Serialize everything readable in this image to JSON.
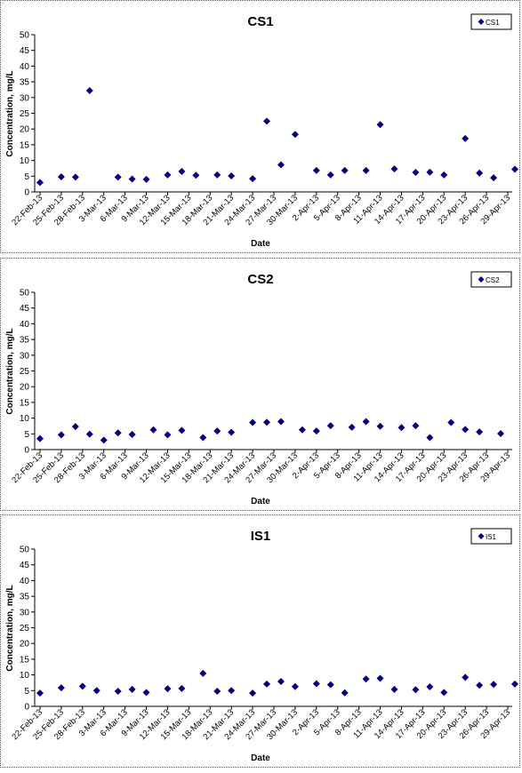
{
  "chart_data": [
    {
      "type": "scatter",
      "title": "CS1",
      "xlabel": "Date",
      "ylabel": "Concentration, mg/L",
      "ylim": [
        0,
        50
      ],
      "yticks": [
        0,
        5,
        10,
        15,
        20,
        25,
        30,
        35,
        40,
        45,
        50
      ],
      "xticks": [
        "22-Feb-13",
        "25-Feb-13",
        "28-Feb-13",
        "3-Mar-13",
        "6-Mar-13",
        "9-Mar-13",
        "12-Mar-13",
        "15-Mar-13",
        "18-Mar-13",
        "21-Mar-13",
        "24-Mar-13",
        "27-Mar-13",
        "30-Mar-13",
        "2-Apr-13",
        "5-Apr-13",
        "8-Apr-13",
        "11-Apr-13",
        "14-Apr-13",
        "17-Apr-13",
        "20-Apr-13",
        "23-Apr-13",
        "26-Apr-13",
        "29-Apr-13"
      ],
      "legend": "top-right",
      "grid": false,
      "color": "#000080",
      "series": [
        {
          "name": "CS1",
          "points": [
            [
              "22-Feb-13",
              3
            ],
            [
              "25-Feb-13",
              4.8
            ],
            [
              "27-Feb-13",
              4.7
            ],
            [
              "1-Mar-13",
              32.2
            ],
            [
              "5-Mar-13",
              4.7
            ],
            [
              "7-Mar-13",
              4.1
            ],
            [
              "9-Mar-13",
              4
            ],
            [
              "12-Mar-13",
              5.4
            ],
            [
              "14-Mar-13",
              6.5
            ],
            [
              "16-Mar-13",
              5.3
            ],
            [
              "19-Mar-13",
              5.4
            ],
            [
              "21-Mar-13",
              5.1
            ],
            [
              "24-Mar-13",
              4.2
            ],
            [
              "26-Mar-13",
              22.5
            ],
            [
              "28-Mar-13",
              8.6
            ],
            [
              "30-Mar-13",
              18.3
            ],
            [
              "2-Apr-13",
              6.8
            ],
            [
              "4-Apr-13",
              5.4
            ],
            [
              "6-Apr-13",
              6.8
            ],
            [
              "9-Apr-13",
              6.8
            ],
            [
              "11-Apr-13",
              21.4
            ],
            [
              "13-Apr-13",
              7.3
            ],
            [
              "16-Apr-13",
              6.2
            ],
            [
              "18-Apr-13",
              6.3
            ],
            [
              "20-Apr-13",
              5.4
            ],
            [
              "23-Apr-13",
              17
            ],
            [
              "25-Apr-13",
              6
            ],
            [
              "27-Apr-13",
              4.5
            ],
            [
              "30-Apr-13",
              7.2
            ]
          ]
        }
      ]
    },
    {
      "type": "scatter",
      "title": "CS2",
      "xlabel": "Date",
      "ylabel": "Concentration, mg/L",
      "ylim": [
        0,
        50
      ],
      "yticks": [
        0,
        5,
        10,
        15,
        20,
        25,
        30,
        35,
        40,
        45,
        50
      ],
      "xticks": [
        "22-Feb-13",
        "25-Feb-13",
        "28-Feb-13",
        "3-Mar-13",
        "6-Mar-13",
        "9-Mar-13",
        "12-Mar-13",
        "15-Mar-13",
        "18-Mar-13",
        "21-Mar-13",
        "24-Mar-13",
        "27-Mar-13",
        "30-Mar-13",
        "2-Apr-13",
        "5-Apr-13",
        "8-Apr-13",
        "11-Apr-13",
        "14-Apr-13",
        "17-Apr-13",
        "20-Apr-13",
        "23-Apr-13",
        "26-Apr-13",
        "29-Apr-13"
      ],
      "legend": "top-right",
      "grid": false,
      "color": "#000080",
      "series": [
        {
          "name": "CS2",
          "points": [
            [
              "22-Feb-13",
              3.5
            ],
            [
              "25-Feb-13",
              4.7
            ],
            [
              "27-Feb-13",
              7.3
            ],
            [
              "1-Mar-13",
              4.9
            ],
            [
              "3-Mar-13",
              3
            ],
            [
              "5-Mar-13",
              5.3
            ],
            [
              "7-Mar-13",
              4.8
            ],
            [
              "10-Mar-13",
              6.3
            ],
            [
              "12-Mar-13",
              4.7
            ],
            [
              "14-Mar-13",
              6.1
            ],
            [
              "17-Mar-13",
              3.8
            ],
            [
              "19-Mar-13",
              5.9
            ],
            [
              "21-Mar-13",
              5.5
            ],
            [
              "24-Mar-13",
              8.6
            ],
            [
              "26-Mar-13",
              8.7
            ],
            [
              "28-Mar-13",
              8.9
            ],
            [
              "31-Mar-13",
              6.3
            ],
            [
              "2-Apr-13",
              5.9
            ],
            [
              "4-Apr-13",
              7.6
            ],
            [
              "7-Apr-13",
              7.1
            ],
            [
              "9-Apr-13",
              8.9
            ],
            [
              "11-Apr-13",
              7.4
            ],
            [
              "14-Apr-13",
              7
            ],
            [
              "16-Apr-13",
              7.6
            ],
            [
              "18-Apr-13",
              3.8
            ],
            [
              "21-Apr-13",
              8.6
            ],
            [
              "23-Apr-13",
              6.4
            ],
            [
              "25-Apr-13",
              5.6
            ],
            [
              "28-Apr-13",
              5.1
            ]
          ]
        }
      ]
    },
    {
      "type": "scatter",
      "title": "IS1",
      "xlabel": "Date",
      "ylabel": "Concentration, mg/L",
      "ylim": [
        0,
        50
      ],
      "yticks": [
        0,
        5,
        10,
        15,
        20,
        25,
        30,
        35,
        40,
        45,
        50
      ],
      "xticks": [
        "22-Feb-13",
        "25-Feb-13",
        "28-Feb-13",
        "3-Mar-13",
        "6-Mar-13",
        "9-Mar-13",
        "12-Mar-13",
        "15-Mar-13",
        "18-Mar-13",
        "21-Mar-13",
        "24-Mar-13",
        "27-Mar-13",
        "30-Mar-13",
        "2-Apr-13",
        "5-Apr-13",
        "8-Apr-13",
        "11-Apr-13",
        "14-Apr-13",
        "17-Apr-13",
        "20-Apr-13",
        "23-Apr-13",
        "26-Apr-13",
        "29-Apr-13"
      ],
      "legend": "top-right",
      "grid": false,
      "color": "#000080",
      "series": [
        {
          "name": "IS1",
          "points": [
            [
              "22-Feb-13",
              4.2
            ],
            [
              "25-Feb-13",
              5.9
            ],
            [
              "28-Feb-13",
              6.4
            ],
            [
              "2-Mar-13",
              5
            ],
            [
              "5-Mar-13",
              4.8
            ],
            [
              "7-Mar-13",
              5.4
            ],
            [
              "9-Mar-13",
              4.4
            ],
            [
              "12-Mar-13",
              5.6
            ],
            [
              "14-Mar-13",
              5.7
            ],
            [
              "17-Mar-13",
              10.5
            ],
            [
              "19-Mar-13",
              4.8
            ],
            [
              "21-Mar-13",
              5
            ],
            [
              "24-Mar-13",
              4.2
            ],
            [
              "26-Mar-13",
              7.1
            ],
            [
              "28-Mar-13",
              7.9
            ],
            [
              "30-Mar-13",
              6.3
            ],
            [
              "2-Apr-13",
              7.2
            ],
            [
              "4-Apr-13",
              6.9
            ],
            [
              "6-Apr-13",
              4.3
            ],
            [
              "9-Apr-13",
              8.7
            ],
            [
              "11-Apr-13",
              8.9
            ],
            [
              "13-Apr-13",
              5.4
            ],
            [
              "16-Apr-13",
              5.3
            ],
            [
              "18-Apr-13",
              6.2
            ],
            [
              "20-Apr-13",
              4.4
            ],
            [
              "23-Apr-13",
              9.2
            ],
            [
              "25-Apr-13",
              6.7
            ],
            [
              "27-Apr-13",
              7
            ],
            [
              "30-Apr-13",
              7.1
            ]
          ]
        }
      ]
    }
  ]
}
